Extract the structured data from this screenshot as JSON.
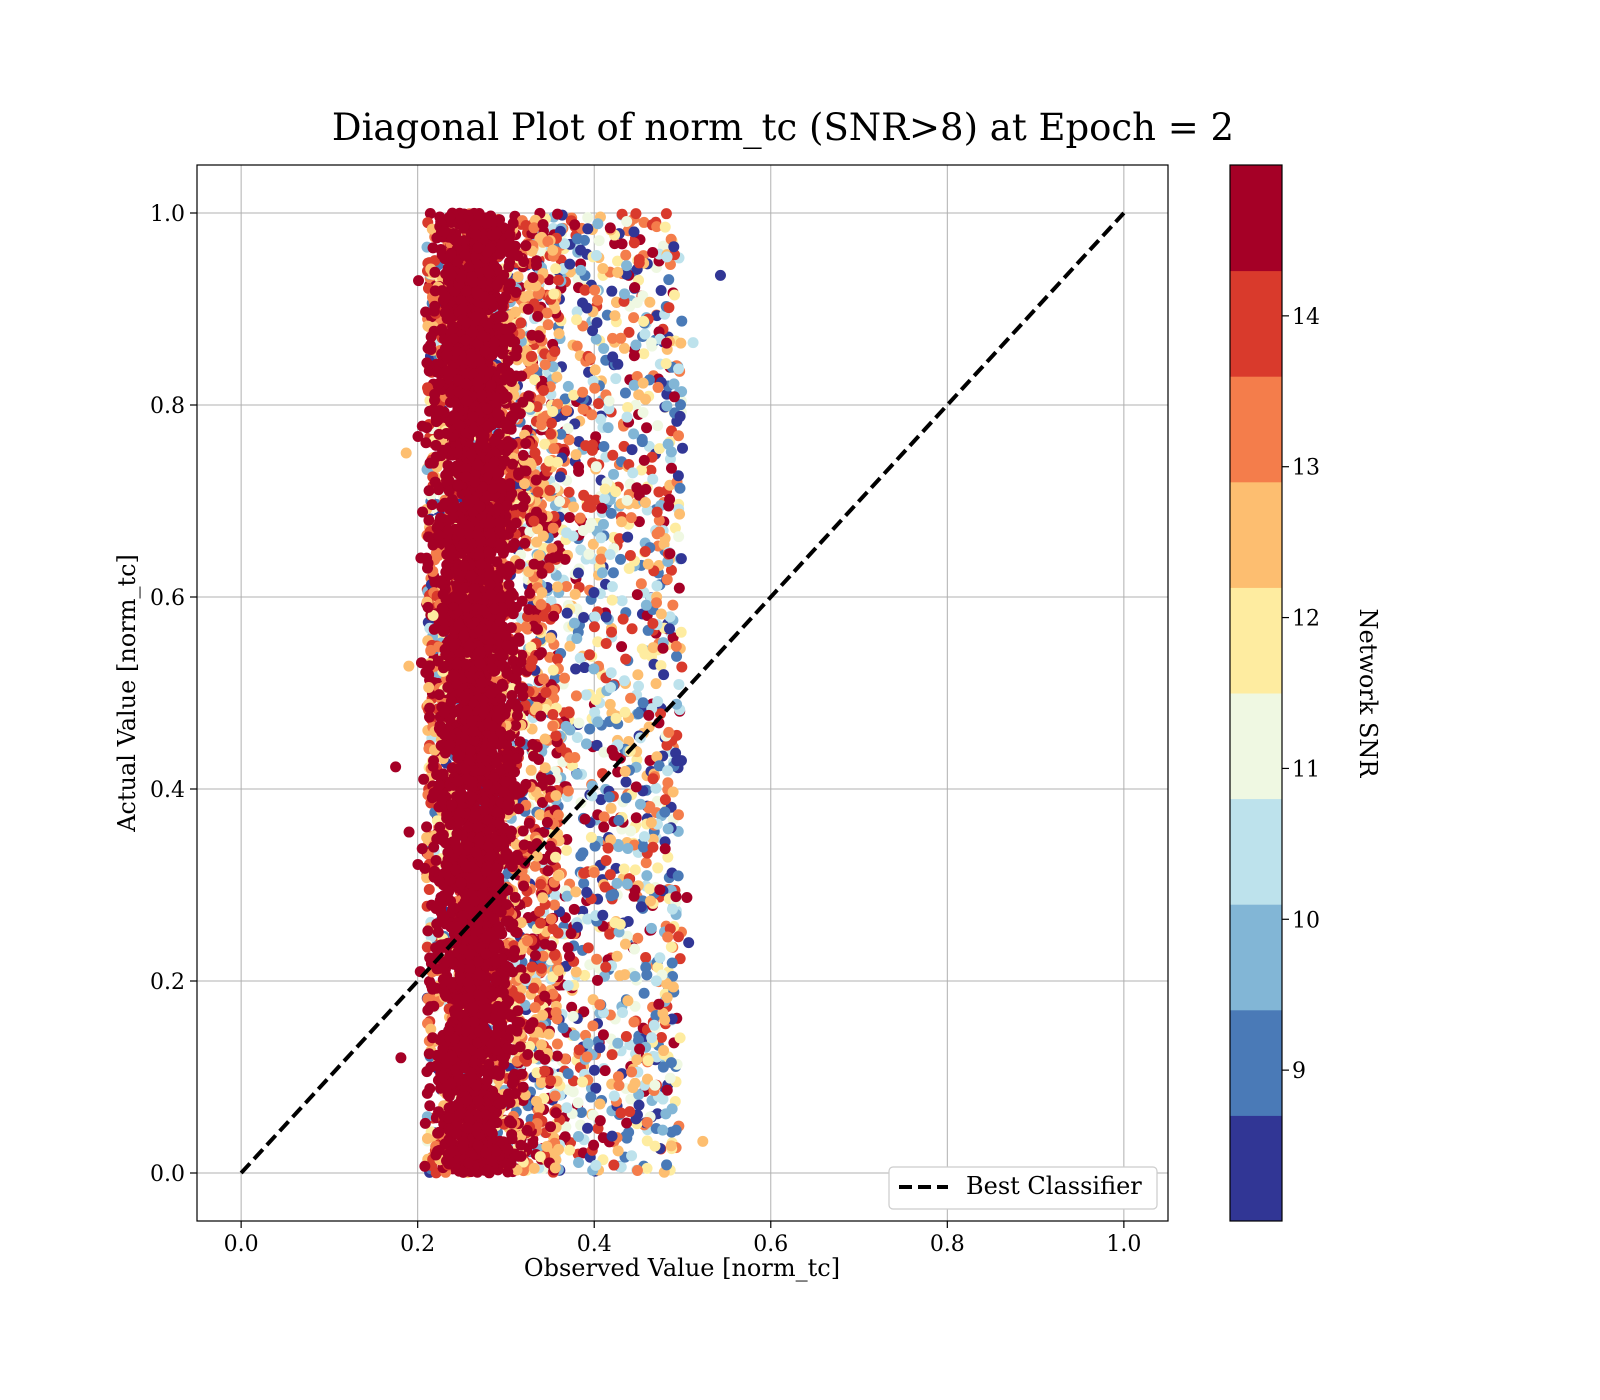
{
  "chart_data": {
    "type": "scatter",
    "title": "Diagonal Plot of norm_tc (SNR>8) at Epoch = 2",
    "xlabel": "Observed Value [norm_tc]",
    "ylabel": "Actual Value [norm_tc]",
    "xlim": [
      -0.05,
      1.05
    ],
    "ylim": [
      -0.05,
      1.05
    ],
    "x_ticks": [
      "0.0",
      "0.2",
      "0.4",
      "0.6",
      "0.8",
      "1.0"
    ],
    "y_ticks": [
      "0.0",
      "0.2",
      "0.4",
      "0.6",
      "0.8",
      "1.0"
    ],
    "grid": true,
    "legend": {
      "placement": "lower-right",
      "entries": [
        "Best Classifier"
      ]
    },
    "reference_line": {
      "name": "Best Classifier",
      "style": "dashed",
      "color": "#000000",
      "x": [
        0.0,
        1.0
      ],
      "y": [
        0.0,
        1.0
      ]
    },
    "colorbar": {
      "label": "Network SNR",
      "range": [
        8,
        15
      ],
      "ticks": [
        "9",
        "10",
        "11",
        "12",
        "13",
        "14"
      ],
      "colors": [
        "#313695",
        "#4575b4",
        "#74add1",
        "#abd9e9",
        "#e0f3f8",
        "#ffffbf",
        "#fee090",
        "#fdae61",
        "#f46d43",
        "#d73027",
        "#a50026"
      ],
      "band_colors": [
        "#313695",
        "#4a7ab7",
        "#82b6d6",
        "#bde2ec",
        "#eff8e2",
        "#feeca0",
        "#fdbe70",
        "#f47d4b",
        "#d93a2c",
        "#a50026"
      ]
    },
    "scatter_description": {
      "dense_core": {
        "x_range": [
          0.22,
          0.31
        ],
        "y_range": [
          0.0,
          1.0
        ],
        "dominant_snr": 14.5
      },
      "spread_region": {
        "x_range": [
          0.2,
          0.5
        ],
        "y_range": [
          0.0,
          1.0
        ],
        "snr_range": [
          8,
          15
        ]
      },
      "outliers": [
        {
          "x": 0.543,
          "y": 0.935,
          "snr": 8.1
        },
        {
          "x": 0.175,
          "y": 0.423,
          "snr": 14.8
        },
        {
          "x": 0.523,
          "y": 0.033,
          "snr": 12.7
        },
        {
          "x": 0.512,
          "y": 0.865,
          "snr": 10.6
        },
        {
          "x": 0.5,
          "y": 0.755,
          "snr": 8.2
        },
        {
          "x": 0.507,
          "y": 0.24,
          "snr": 8.3
        },
        {
          "x": 0.505,
          "y": 0.287,
          "snr": 14.6
        },
        {
          "x": 0.181,
          "y": 0.12,
          "snr": 14.7
        },
        {
          "x": 0.187,
          "y": 0.75,
          "snr": 12.8
        },
        {
          "x": 0.19,
          "y": 0.528,
          "snr": 12.6
        }
      ]
    }
  }
}
